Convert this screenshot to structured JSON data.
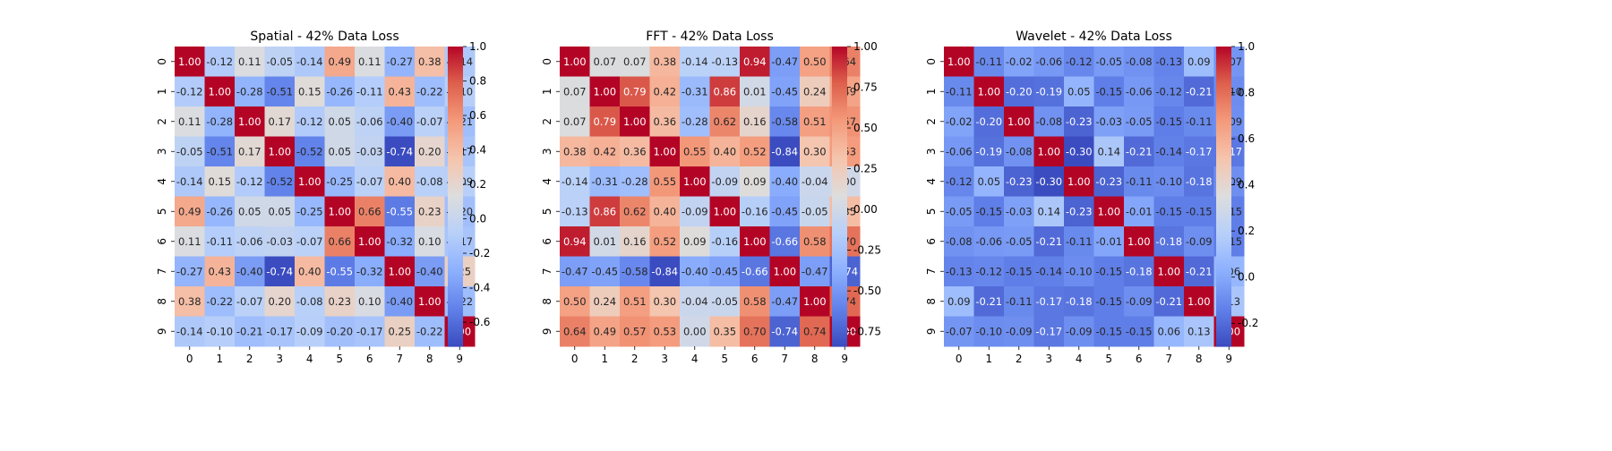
{
  "chart_data": [
    {
      "type": "heatmap",
      "title": "Spatial - 42% Data Loss",
      "x_labels": [
        "0",
        "1",
        "2",
        "3",
        "4",
        "5",
        "6",
        "7",
        "8",
        "9"
      ],
      "y_labels": [
        "0",
        "1",
        "2",
        "3",
        "4",
        "5",
        "6",
        "7",
        "8",
        "9"
      ],
      "values": [
        [
          1.0,
          -0.12,
          0.11,
          -0.05,
          -0.14,
          0.49,
          0.11,
          -0.27,
          0.38,
          -0.14
        ],
        [
          -0.12,
          1.0,
          -0.28,
          -0.51,
          0.15,
          -0.26,
          -0.11,
          0.43,
          -0.22,
          -0.1
        ],
        [
          0.11,
          -0.28,
          1.0,
          0.17,
          -0.12,
          0.05,
          -0.06,
          -0.4,
          -0.07,
          -0.21
        ],
        [
          -0.05,
          -0.51,
          0.17,
          1.0,
          -0.52,
          0.05,
          -0.03,
          -0.74,
          0.2,
          -0.17
        ],
        [
          -0.14,
          0.15,
          -0.12,
          -0.52,
          1.0,
          -0.25,
          -0.07,
          0.4,
          -0.08,
          -0.09
        ],
        [
          0.49,
          -0.26,
          0.05,
          0.05,
          -0.25,
          1.0,
          0.66,
          -0.55,
          0.23,
          -0.2
        ],
        [
          0.11,
          -0.11,
          -0.06,
          -0.03,
          -0.07,
          0.66,
          1.0,
          -0.32,
          0.1,
          -0.17
        ],
        [
          -0.27,
          0.43,
          -0.4,
          -0.74,
          0.4,
          -0.55,
          -0.32,
          1.0,
          -0.4,
          0.25
        ],
        [
          0.38,
          -0.22,
          -0.07,
          0.2,
          -0.08,
          0.23,
          0.1,
          -0.4,
          1.0,
          -0.22
        ],
        [
          -0.14,
          -0.1,
          -0.21,
          -0.17,
          -0.09,
          -0.2,
          -0.17,
          0.25,
          -0.22,
          1.0
        ]
      ],
      "annot": [
        [
          "1.00",
          "-0.12",
          "0.11",
          "-0.05",
          "-0.14",
          "0.49",
          "0.11",
          "-0.27",
          "0.38",
          "-0.14"
        ],
        [
          "-0.12",
          "1.00",
          "-0.28",
          "-0.51",
          "0.15",
          "-0.26",
          "-0.11",
          "0.43",
          "-0.22",
          "-0.10"
        ],
        [
          "0.11",
          "-0.28",
          "1.00",
          "0.17",
          "-0.12",
          "0.05",
          "-0.06",
          "-0.40",
          "-0.07",
          "-0.21"
        ],
        [
          "-0.05",
          "-0.51",
          "0.17",
          "1.00",
          "-0.52",
          "0.05",
          "-0.03",
          "-0.74",
          "0.20",
          "-0.17"
        ],
        [
          "-0.14",
          "0.15",
          "-0.12",
          "-0.52",
          "1.00",
          "-0.25",
          "-0.07",
          "0.40",
          "-0.08",
          "-0.09"
        ],
        [
          "0.49",
          "-0.26",
          "0.05",
          "0.05",
          "-0.25",
          "1.00",
          "0.66",
          "-0.55",
          "0.23",
          "-0.20"
        ],
        [
          "0.11",
          "-0.11",
          "-0.06",
          "-0.03",
          "-0.07",
          "0.66",
          "1.00",
          "-0.32",
          "0.10",
          "-0.17"
        ],
        [
          "-0.27",
          "0.43",
          "-0.40",
          "-0.74",
          "0.40",
          "-0.55",
          "-0.32",
          "1.00",
          "-0.40",
          "0.25"
        ],
        [
          "0.38",
          "-0.22",
          "-0.07",
          "0.20",
          "-0.08",
          "0.23",
          "0.10",
          "-0.40",
          "1.00",
          "-0.22"
        ],
        [
          "-0.14",
          "-0.10",
          "-0.21",
          "-0.17",
          "-0.09",
          "-0.20",
          "-0.17",
          "0.25",
          "-0.22",
          "1.00"
        ]
      ],
      "color_range": [
        -0.74,
        1.0
      ],
      "colorbar_ticks": [
        "-0.6",
        "-0.4",
        "-0.2",
        "0.0",
        "0.2",
        "0.4",
        "0.6",
        "0.8",
        "1.0"
      ],
      "colorbar_tick_values": [
        -0.6,
        -0.4,
        -0.2,
        0.0,
        0.2,
        0.4,
        0.6,
        0.8,
        1.0
      ],
      "colormap": "coolwarm"
    },
    {
      "type": "heatmap",
      "title": "FFT - 42% Data Loss",
      "x_labels": [
        "0",
        "1",
        "2",
        "3",
        "4",
        "5",
        "6",
        "7",
        "8",
        "9"
      ],
      "y_labels": [
        "0",
        "1",
        "2",
        "3",
        "4",
        "5",
        "6",
        "7",
        "8",
        "9"
      ],
      "values": [
        [
          1.0,
          0.07,
          0.07,
          0.38,
          -0.14,
          -0.13,
          0.94,
          -0.47,
          0.5,
          0.64
        ],
        [
          0.07,
          1.0,
          0.79,
          0.42,
          -0.31,
          0.86,
          0.01,
          -0.45,
          0.24,
          0.49
        ],
        [
          0.07,
          0.79,
          1.0,
          0.36,
          -0.28,
          0.62,
          0.16,
          -0.58,
          0.51,
          0.57
        ],
        [
          0.38,
          0.42,
          0.36,
          1.0,
          0.55,
          0.4,
          0.52,
          -0.84,
          0.3,
          0.53
        ],
        [
          -0.14,
          -0.31,
          -0.28,
          0.55,
          1.0,
          -0.09,
          0.09,
          -0.4,
          -0.04,
          0.0
        ],
        [
          -0.13,
          0.86,
          0.62,
          0.4,
          -0.09,
          1.0,
          -0.16,
          -0.45,
          -0.05,
          0.35
        ],
        [
          0.94,
          0.01,
          0.16,
          0.52,
          0.09,
          -0.16,
          1.0,
          -0.66,
          0.58,
          0.7
        ],
        [
          -0.47,
          -0.45,
          -0.58,
          -0.84,
          -0.4,
          -0.45,
          -0.66,
          1.0,
          -0.47,
          -0.74
        ],
        [
          0.5,
          0.24,
          0.51,
          0.3,
          -0.04,
          -0.05,
          0.58,
          -0.47,
          1.0,
          0.74
        ],
        [
          0.64,
          0.49,
          0.57,
          0.53,
          0.0,
          0.35,
          0.7,
          -0.74,
          0.74,
          1.0
        ]
      ],
      "annot": [
        [
          "1.00",
          "0.07",
          "0.07",
          "0.38",
          "-0.14",
          "-0.13",
          "0.94",
          "-0.47",
          "0.50",
          "0.64"
        ],
        [
          "0.07",
          "1.00",
          "0.79",
          "0.42",
          "-0.31",
          "0.86",
          "0.01",
          "-0.45",
          "0.24",
          "0.49"
        ],
        [
          "0.07",
          "0.79",
          "1.00",
          "0.36",
          "-0.28",
          "0.62",
          "0.16",
          "-0.58",
          "0.51",
          "0.57"
        ],
        [
          "0.38",
          "0.42",
          "0.36",
          "1.00",
          "0.55",
          "0.40",
          "0.52",
          "-0.84",
          "0.30",
          "0.53"
        ],
        [
          "-0.14",
          "-0.31",
          "-0.28",
          "0.55",
          "1.00",
          "-0.09",
          "0.09",
          "-0.40",
          "-0.04",
          "0.00"
        ],
        [
          "-0.13",
          "0.86",
          "0.62",
          "0.40",
          "-0.09",
          "1.00",
          "-0.16",
          "-0.45",
          "-0.05",
          "0.35"
        ],
        [
          "0.94",
          "0.01",
          "0.16",
          "0.52",
          "0.09",
          "-0.16",
          "1.00",
          "-0.66",
          "0.58",
          "0.70"
        ],
        [
          "-0.47",
          "-0.45",
          "-0.58",
          "-0.84",
          "-0.40",
          "-0.45",
          "-0.66",
          "1.00",
          "-0.47",
          "-0.74"
        ],
        [
          "0.50",
          "0.24",
          "0.51",
          "0.30",
          "-0.04",
          "-0.05",
          "0.58",
          "-0.47",
          "1.00",
          "0.74"
        ],
        [
          "0.64",
          "0.49",
          "0.57",
          "0.53",
          "0.00",
          "0.35",
          "0.70",
          "-0.74",
          "0.74",
          "1.00"
        ]
      ],
      "color_range": [
        -0.84,
        1.0
      ],
      "colorbar_ticks": [
        "-0.75",
        "-0.50",
        "-0.25",
        "0.00",
        "0.25",
        "0.50",
        "0.75",
        "1.00"
      ],
      "colorbar_tick_values": [
        -0.75,
        -0.5,
        -0.25,
        0.0,
        0.25,
        0.5,
        0.75,
        1.0
      ],
      "colormap": "coolwarm"
    },
    {
      "type": "heatmap",
      "title": "Wavelet - 42% Data Loss",
      "x_labels": [
        "0",
        "1",
        "2",
        "3",
        "4",
        "5",
        "6",
        "7",
        "8",
        "9"
      ],
      "y_labels": [
        "0",
        "1",
        "2",
        "3",
        "4",
        "5",
        "6",
        "7",
        "8",
        "9"
      ],
      "values": [
        [
          1.0,
          -0.11,
          -0.02,
          -0.06,
          -0.12,
          -0.05,
          -0.08,
          -0.13,
          0.09,
          -0.07
        ],
        [
          -0.11,
          1.0,
          -0.2,
          -0.19,
          0.05,
          -0.15,
          -0.06,
          -0.12,
          -0.21,
          -0.1
        ],
        [
          -0.02,
          -0.2,
          1.0,
          -0.08,
          -0.23,
          -0.03,
          -0.05,
          -0.15,
          -0.11,
          -0.09
        ],
        [
          -0.06,
          -0.19,
          -0.08,
          1.0,
          -0.3,
          0.14,
          -0.21,
          -0.14,
          -0.17,
          -0.17
        ],
        [
          -0.12,
          0.05,
          -0.23,
          -0.3,
          1.0,
          -0.23,
          -0.11,
          -0.1,
          -0.18,
          -0.09
        ],
        [
          -0.05,
          -0.15,
          -0.03,
          0.14,
          -0.23,
          1.0,
          -0.01,
          -0.15,
          -0.15,
          -0.15
        ],
        [
          -0.08,
          -0.06,
          -0.05,
          -0.21,
          -0.11,
          -0.01,
          1.0,
          -0.18,
          -0.09,
          -0.15
        ],
        [
          -0.13,
          -0.12,
          -0.15,
          -0.14,
          -0.1,
          -0.15,
          -0.18,
          1.0,
          -0.21,
          0.06
        ],
        [
          0.09,
          -0.21,
          -0.11,
          -0.17,
          -0.18,
          -0.15,
          -0.09,
          -0.21,
          1.0,
          0.13
        ],
        [
          -0.07,
          -0.1,
          -0.09,
          -0.17,
          -0.09,
          -0.15,
          -0.15,
          0.06,
          0.13,
          1.0
        ]
      ],
      "annot": [
        [
          "1.00",
          "-0.11",
          "-0.02",
          "-0.06",
          "-0.12",
          "-0.05",
          "-0.08",
          "-0.13",
          "0.09",
          "-0.07"
        ],
        [
          "-0.11",
          "1.00",
          "-0.20",
          "-0.19",
          "0.05",
          "-0.15",
          "-0.06",
          "-0.12",
          "-0.21",
          "-0.10"
        ],
        [
          "-0.02",
          "-0.20",
          "1.00",
          "-0.08",
          "-0.23",
          "-0.03",
          "-0.05",
          "-0.15",
          "-0.11",
          "-0.09"
        ],
        [
          "-0.06",
          "-0.19",
          "-0.08",
          "1.00",
          "-0.30",
          "0.14",
          "-0.21",
          "-0.14",
          "-0.17",
          "-0.17"
        ],
        [
          "-0.12",
          "0.05",
          "-0.23",
          "-0.30",
          "1.00",
          "-0.23",
          "-0.11",
          "-0.10",
          "-0.18",
          "-0.09"
        ],
        [
          "-0.05",
          "-0.15",
          "-0.03",
          "0.14",
          "-0.23",
          "1.00",
          "-0.01",
          "-0.15",
          "-0.15",
          "-0.15"
        ],
        [
          "-0.08",
          "-0.06",
          "-0.05",
          "-0.21",
          "-0.11",
          "-0.01",
          "1.00",
          "-0.18",
          "-0.09",
          "-0.15"
        ],
        [
          "-0.13",
          "-0.12",
          "-0.15",
          "-0.14",
          "-0.10",
          "-0.15",
          "-0.18",
          "1.00",
          "-0.21",
          "0.06"
        ],
        [
          "0.09",
          "-0.21",
          "-0.11",
          "-0.17",
          "-0.18",
          "-0.15",
          "-0.09",
          "-0.21",
          "1.00",
          "0.13"
        ],
        [
          "-0.07",
          "-0.10",
          "-0.09",
          "-0.17",
          "-0.09",
          "-0.15",
          "-0.15",
          "0.06",
          "0.13",
          "1.00"
        ]
      ],
      "color_range": [
        -0.3,
        1.0
      ],
      "colorbar_ticks": [
        "-0.2",
        "0.0",
        "0.2",
        "0.4",
        "0.6",
        "0.8",
        "1.0"
      ],
      "colorbar_tick_values": [
        -0.2,
        0.0,
        0.2,
        0.4,
        0.6,
        0.8,
        1.0
      ],
      "colormap": "coolwarm"
    }
  ]
}
